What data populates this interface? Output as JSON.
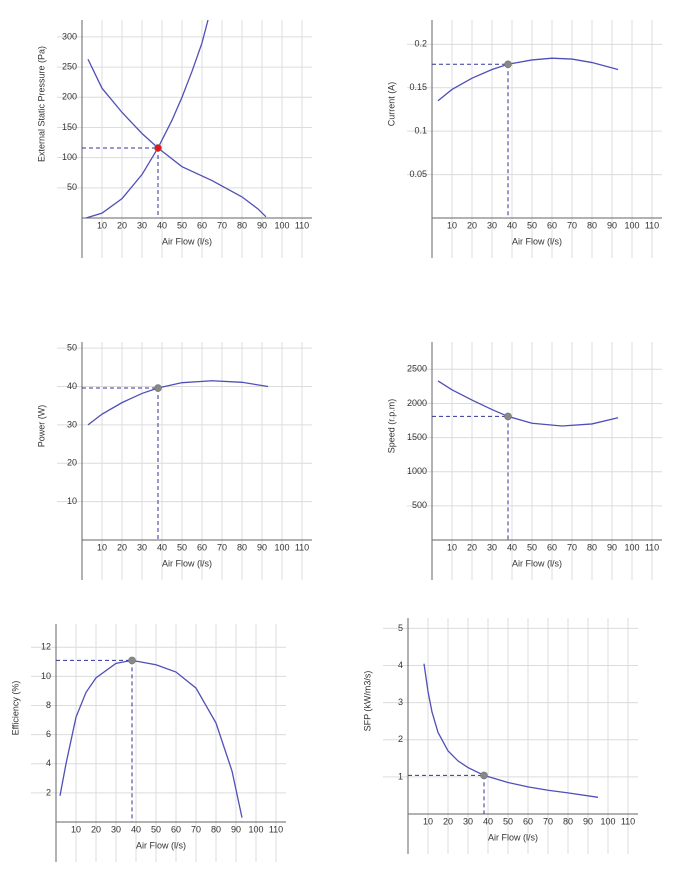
{
  "chart_data": [
    {
      "type": "line",
      "xlabel": "Air Flow (l/s)",
      "ylabel": "External Static Pressure (Pa)",
      "xlim": [
        0,
        115
      ],
      "ylim": [
        0,
        328
      ],
      "xticks": [
        10,
        20,
        30,
        40,
        50,
        60,
        70,
        80,
        90,
        100,
        110
      ],
      "yticks": [
        50,
        100,
        150,
        200,
        250,
        300
      ],
      "grid": true,
      "series": [
        {
          "color": "#4f4fb8",
          "x": [
            2,
            10,
            20,
            30,
            38,
            45,
            50,
            55,
            60,
            63
          ],
          "values": [
            0,
            8,
            32,
            72,
            116,
            162,
            200,
            243,
            290,
            328
          ]
        },
        {
          "color": "#4f4fb8",
          "x": [
            3,
            10,
            20,
            30,
            38,
            50,
            65,
            80,
            88,
            92
          ],
          "values": [
            263,
            215,
            175,
            140,
            116,
            85,
            62,
            35,
            15,
            2
          ]
        }
      ],
      "operating_point": {
        "x": 38,
        "y": 116
      },
      "point_color": "#e8141b"
    },
    {
      "type": "line",
      "xlabel": "Air Flow (l/s)",
      "ylabel": "Current (A)",
      "xlim": [
        0,
        115
      ],
      "ylim": [
        0,
        0.228
      ],
      "xticks": [
        10,
        20,
        30,
        40,
        50,
        60,
        70,
        80,
        90,
        100,
        110
      ],
      "yticks": [
        0.05,
        0.1,
        0.15,
        0.2
      ],
      "grid": true,
      "series": [
        {
          "color": "#4f4fb8",
          "x": [
            3,
            10,
            20,
            30,
            38,
            50,
            60,
            70,
            80,
            93
          ],
          "values": [
            0.135,
            0.148,
            0.161,
            0.171,
            0.177,
            0.182,
            0.184,
            0.183,
            0.179,
            0.171
          ]
        }
      ],
      "operating_point": {
        "x": 38,
        "y": 0.177
      },
      "point_color": "#888888"
    },
    {
      "type": "line",
      "xlabel": "Air Flow (l/s)",
      "ylabel": "Power (W)",
      "xlim": [
        0,
        115
      ],
      "ylim": [
        0,
        51.6
      ],
      "xticks": [
        10,
        20,
        30,
        40,
        50,
        60,
        70,
        80,
        90,
        100,
        110
      ],
      "yticks": [
        10,
        20,
        30,
        40,
        50
      ],
      "grid": true,
      "series": [
        {
          "color": "#4f4fb8",
          "x": [
            3,
            10,
            20,
            30,
            38,
            50,
            65,
            80,
            93
          ],
          "values": [
            30,
            32.8,
            35.8,
            38.2,
            39.6,
            41,
            41.5,
            41.1,
            40
          ]
        }
      ],
      "operating_point": {
        "x": 38,
        "y": 39.6
      },
      "point_color": "#888888"
    },
    {
      "type": "line",
      "xlabel": "Air Flow (l/s)",
      "ylabel": "Speed (r.p.m)",
      "xlim": [
        0,
        115
      ],
      "ylim": [
        0,
        2900
      ],
      "xticks": [
        10,
        20,
        30,
        40,
        50,
        60,
        70,
        80,
        90,
        100,
        110
      ],
      "yticks": [
        500,
        1000,
        1500,
        2000,
        2500
      ],
      "grid": true,
      "series": [
        {
          "color": "#4f4fb8",
          "x": [
            3,
            10,
            20,
            30,
            38,
            50,
            65,
            80,
            93
          ],
          "values": [
            2330,
            2200,
            2050,
            1910,
            1810,
            1710,
            1670,
            1700,
            1790
          ]
        }
      ],
      "operating_point": {
        "x": 38,
        "y": 1810
      },
      "point_color": "#888888"
    },
    {
      "type": "line",
      "xlabel": "Air Flow (l/s)",
      "ylabel": "Efficiency (%)",
      "xlim": [
        0,
        115
      ],
      "ylim": [
        0,
        13.6
      ],
      "xticks": [
        10,
        20,
        30,
        40,
        50,
        60,
        70,
        80,
        90,
        100,
        110
      ],
      "yticks": [
        2,
        4,
        6,
        8,
        10,
        12
      ],
      "grid": true,
      "series": [
        {
          "color": "#4f4fb8",
          "x": [
            2,
            5,
            10,
            15,
            20,
            30,
            38,
            50,
            60,
            70,
            80,
            88,
            93
          ],
          "values": [
            1.8,
            4,
            7.2,
            8.9,
            9.9,
            10.9,
            11.1,
            10.8,
            10.3,
            9.2,
            6.8,
            3.5,
            0.3
          ]
        }
      ],
      "operating_point": {
        "x": 38,
        "y": 11.1
      },
      "point_color": "#888888"
    },
    {
      "type": "line",
      "xlabel": "Air Flow (l/s)",
      "ylabel": "SFP (kW/m3/s)",
      "xlim": [
        0,
        115
      ],
      "ylim": [
        0,
        5.28
      ],
      "xticks": [
        10,
        20,
        30,
        40,
        50,
        60,
        70,
        80,
        90,
        100,
        110
      ],
      "yticks": [
        1,
        2,
        3,
        4,
        5
      ],
      "grid": true,
      "series": [
        {
          "color": "#4f4fb8",
          "x": [
            8,
            10,
            12,
            15,
            20,
            25,
            30,
            38,
            50,
            60,
            70,
            80,
            95
          ],
          "values": [
            4.05,
            3.3,
            2.75,
            2.2,
            1.7,
            1.43,
            1.25,
            1.04,
            0.85,
            0.73,
            0.64,
            0.57,
            0.45
          ]
        }
      ],
      "operating_point": {
        "x": 38,
        "y": 1.04
      },
      "point_color": "#888888"
    }
  ]
}
